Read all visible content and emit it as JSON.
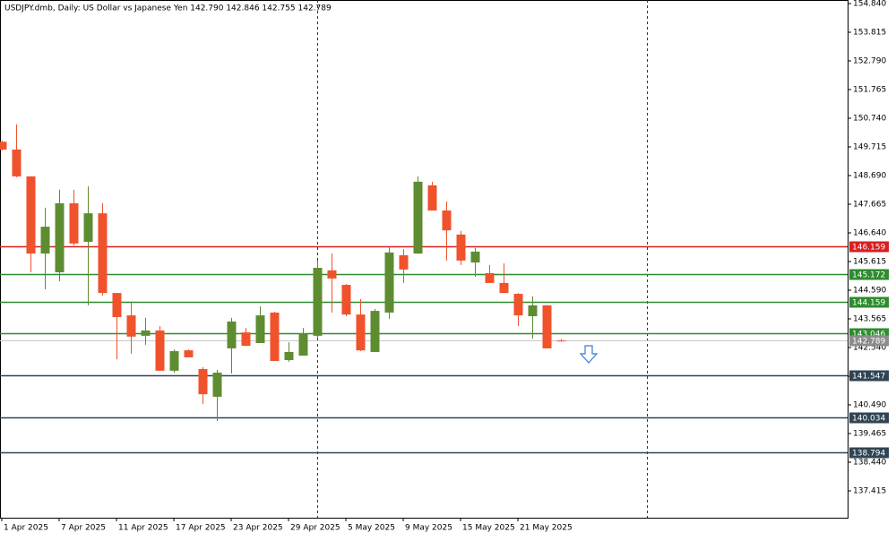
{
  "chart_data": {
    "type": "candlestick",
    "title": "USDJPY.dmb, Daily:  US Dollar vs Japanese Yen  142.790 142.846 142.755 142.789",
    "categories": [
      "1 Apr 2025",
      null,
      null,
      null,
      "7 Apr 2025",
      null,
      null,
      null,
      "11 Apr 2025",
      null,
      null,
      null,
      "17 Apr 2025",
      null,
      null,
      null,
      "23 Apr 2025",
      null,
      null,
      null,
      "29 Apr 2025",
      null,
      null,
      null,
      "5 May 2025",
      null,
      null,
      null,
      "9 May 2025",
      null,
      null,
      null,
      "15 May 2025",
      null,
      null,
      null,
      "21 May 2025",
      null,
      null,
      null
    ],
    "open": [
      149.9,
      149.62,
      148.66,
      145.9,
      145.23,
      147.7,
      146.32,
      147.34,
      144.49,
      143.69,
      142.96,
      143.15,
      141.71,
      142.44,
      141.77,
      140.78,
      142.51,
      143.08,
      142.7,
      143.79,
      142.09,
      142.25,
      142.96,
      145.3,
      144.78,
      143.72,
      142.38,
      143.79,
      145.84,
      145.9,
      148.34,
      147.44,
      146.58,
      145.58,
      145.2,
      144.85,
      144.46,
      143.66,
      144.05,
      142.79
    ],
    "high": [
      149.93,
      150.52,
      148.66,
      147.54,
      148.18,
      148.18,
      148.3,
      147.7,
      144.49,
      144.14,
      143.6,
      143.31,
      142.47,
      142.47,
      141.84,
      141.74,
      143.6,
      143.24,
      144.01,
      143.82,
      142.73,
      143.24,
      145.65,
      145.9,
      144.81,
      144.27,
      143.92,
      146.16,
      146.06,
      148.66,
      148.47,
      147.76,
      146.71,
      146.1,
      145.49,
      145.55,
      144.49,
      144.37,
      144.05,
      142.846
    ],
    "low": [
      149.59,
      148.63,
      145.23,
      144.62,
      144.91,
      146.19,
      144.05,
      144.4,
      142.12,
      142.32,
      142.64,
      141.71,
      141.64,
      142.19,
      140.52,
      139.91,
      141.61,
      142.6,
      142.7,
      142.06,
      142.03,
      142.25,
      142.86,
      143.79,
      143.66,
      142.41,
      142.38,
      143.57,
      144.85,
      145.9,
      147.44,
      145.65,
      145.49,
      145.07,
      144.85,
      144.49,
      143.31,
      142.86,
      142.51,
      142.755
    ],
    "close": [
      149.62,
      148.66,
      145.9,
      146.86,
      147.7,
      146.26,
      147.34,
      144.49,
      143.63,
      142.93,
      143.15,
      141.71,
      142.41,
      142.19,
      140.87,
      141.64,
      143.47,
      142.6,
      143.69,
      142.06,
      142.38,
      143.05,
      145.39,
      145.01,
      143.72,
      142.44,
      143.85,
      145.94,
      145.33,
      148.47,
      147.44,
      146.73,
      145.65,
      145.97,
      144.85,
      144.49,
      143.69,
      144.05,
      142.51,
      142.789
    ],
    "up_color": "#5e8c31",
    "down_color": "#f0522c",
    "ylim": [
      136.454,
      154.968
    ],
    "yticks": [
      {
        "value": 154.84,
        "label": "154.840"
      },
      153.815,
      {
        "value": 152.79,
        "label": "152.790"
      },
      151.765,
      {
        "value": 150.74,
        "label": "150.740"
      },
      149.715,
      {
        "value": 148.69,
        "label": "148.690"
      },
      147.665,
      {
        "value": 146.64,
        "label": "146.640"
      },
      145.615,
      {
        "value": 144.59,
        "label": "144.590"
      },
      143.565,
      {
        "value": 142.54,
        "label": "142.540"
      },
      141.515,
      {
        "value": 140.49,
        "label": "140.490"
      },
      139.465,
      {
        "value": 138.44,
        "label": "138.440"
      },
      137.415
    ],
    "levels": [
      {
        "value": 146.159,
        "color": "#d81e1e"
      },
      {
        "value": 145.172,
        "color": "#2e8b2e"
      },
      {
        "value": 144.159,
        "color": "#2e8b2e"
      },
      {
        "value": 143.046,
        "color": "#2e8b2e"
      },
      {
        "value": 141.547,
        "color": "#2f4454"
      },
      {
        "value": 140.034,
        "color": "#2f4454"
      },
      {
        "value": 138.794,
        "color": "#2f4454"
      }
    ],
    "last_price": {
      "value": 142.789,
      "color": "#8c8c8c"
    }
  }
}
